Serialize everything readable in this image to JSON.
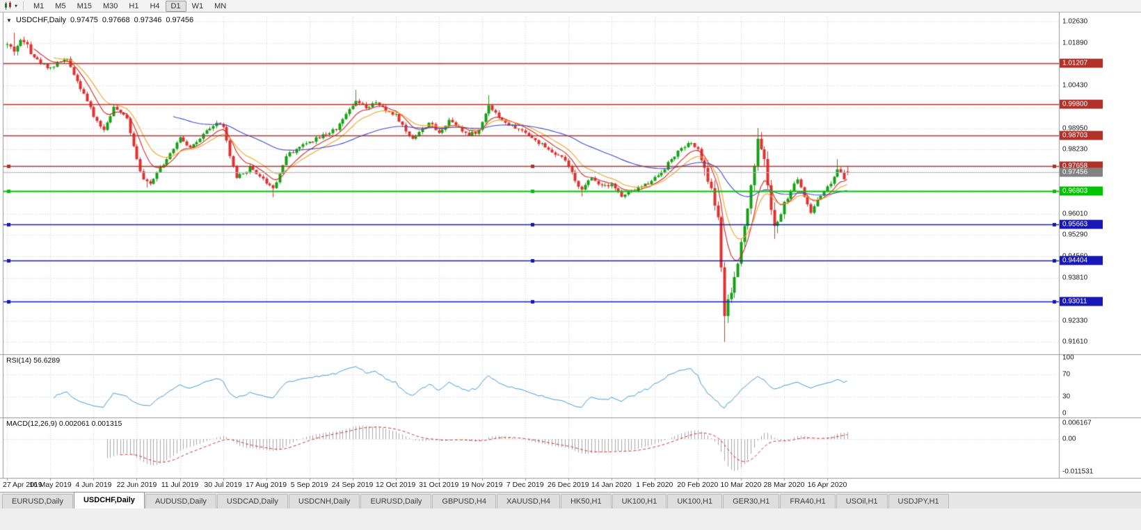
{
  "toolbar": {
    "chart_type_icon": "candlestick-chart-icon",
    "dropdown_glyph": "▾",
    "timeframes": [
      "M1",
      "M5",
      "M15",
      "M30",
      "H1",
      "H4",
      "D1",
      "W1",
      "MN"
    ],
    "active_timeframe": "D1"
  },
  "chart_header": {
    "collapse_icon": "▼",
    "symbol": "USDCHF,Daily",
    "open": "0.97475",
    "high": "0.97668",
    "low": "0.97346",
    "close": "0.97456"
  },
  "price_axis": {
    "labels": [
      {
        "label": "1.02630",
        "value": 1.0263
      },
      {
        "label": "1.01890",
        "value": 1.0189
      },
      {
        "label": "1.00430",
        "value": 1.0043
      },
      {
        "label": "0.98950",
        "value": 0.9895
      },
      {
        "label": "0.98230",
        "value": 0.9823
      },
      {
        "label": "0.96010",
        "value": 0.9601
      },
      {
        "label": "0.95290",
        "value": 0.9529
      },
      {
        "label": "0.94560",
        "value": 0.9456
      },
      {
        "label": "0.93810",
        "value": 0.9381
      },
      {
        "label": "0.92330",
        "value": 0.9233
      },
      {
        "label": "0.91610",
        "value": 0.9161
      }
    ],
    "grid_values": [
      1.0263,
      1.0189,
      1.0115,
      1.0043,
      0.9968,
      0.9895,
      0.9823,
      0.9749,
      0.9675,
      0.9601,
      0.9529,
      0.9456,
      0.9381,
      0.9309,
      0.9233,
      0.9161
    ],
    "current_price": {
      "label": "0.97456",
      "value": 0.97456,
      "color": "#828282"
    }
  },
  "hlines": [
    {
      "label": "1.01207",
      "value": 1.01207,
      "color": "#b2322a",
      "width": 1.5,
      "handles": false
    },
    {
      "label": "0.99800",
      "value": 0.998,
      "color": "#b2322a",
      "width": 1.5,
      "handles": false
    },
    {
      "label": "0.98703",
      "value": 0.98703,
      "color": "#b2322a",
      "width": 1.5,
      "handles": false
    },
    {
      "label": "0.97658",
      "value": 0.97658,
      "color": "#b2322a",
      "width": 1.5,
      "handles": true
    },
    {
      "label": "0.96803",
      "value": 0.96803,
      "color": "#00c400",
      "width": 2,
      "handles": true
    },
    {
      "label": "0.95663",
      "value": 0.95663,
      "color": "#1818b8",
      "width": 1.5,
      "handles": true
    },
    {
      "label": "0.94404",
      "value": 0.94404,
      "color": "#1818b8",
      "width": 1.5,
      "handles": true
    },
    {
      "label": "0.93011",
      "value": 0.93011,
      "color": "#1818b8",
      "width": 1.5,
      "handles": true
    }
  ],
  "date_axis": [
    "27 Apr 2019",
    "16 May 2019",
    "4 Jun 2019",
    "22 Jun 2019",
    "11 Jul 2019",
    "30 Jul 2019",
    "17 Aug 2019",
    "5 Sep 2019",
    "24 Sep 2019",
    "12 Oct 2019",
    "31 Oct 2019",
    "19 Nov 2019",
    "7 Dec 2019",
    "26 Dec 2019",
    "14 Jan 2020",
    "1 Feb 2020",
    "20 Feb 2020",
    "10 Mar 2020",
    "28 Mar 2020",
    "16 Apr 2020"
  ],
  "rsi_panel": {
    "title": "RSI(14) 56.6289",
    "indicator": "RSI",
    "period": 14,
    "last_value": "56.6289",
    "levels": [
      {
        "label": "100",
        "value": 100
      },
      {
        "label": "70",
        "value": 70
      },
      {
        "label": "30",
        "value": 30
      },
      {
        "label": "0",
        "value": 0
      }
    ],
    "line_color": "#3f9bd8"
  },
  "macd_panel": {
    "title": "MACD(12,26,9) 0.002061 0.001315",
    "indicator": "MACD",
    "params": "12,26,9",
    "macd_value": "0.002061",
    "signal_value": "0.001315",
    "max_label": "0.006167",
    "zero_label": "0.00",
    "min_label": "-0.011531",
    "histogram_color": "#a6a6a6",
    "signal_color": "#d23030"
  },
  "tabs": {
    "items": [
      "EURUSD,Daily",
      "USDCHF,Daily",
      "AUDUSD,Daily",
      "USDCAD,Daily",
      "USDCNH,Daily",
      "EURUSD,Daily",
      "GBPUSD,H4",
      "XAUUSD,H4",
      "HK50,H1",
      "UK100,H1",
      "UK100,H1",
      "GER30,H1",
      "FRA40,H1",
      "USOil,H1",
      "USDJPY,H1"
    ],
    "active_index": 1
  },
  "chart_data": {
    "type": "candlestick",
    "symbol": "USDCHF",
    "timeframe": "Daily",
    "bars": 254,
    "label_every_bars": 13,
    "ylim": [
      0.9128,
      1.028
    ],
    "up_color": "#16a016",
    "down_color": "#e03131",
    "moving_averages": [
      {
        "period": 8,
        "color": "#d42424"
      },
      {
        "period": 14,
        "color": "#f2a224"
      },
      {
        "period": 50,
        "color": "#3a4cc8"
      }
    ],
    "final_ohlc": [
      0.97475,
      0.97668,
      0.97346,
      0.97456
    ],
    "price_anchors": [
      [
        0,
        1.0185
      ],
      [
        2,
        1.016
      ],
      [
        4,
        1.02
      ],
      [
        6,
        1.0185
      ],
      [
        8,
        1.014
      ],
      [
        10,
        1.0118
      ],
      [
        13,
        1.0105
      ],
      [
        16,
        1.0125
      ],
      [
        18,
        1.0135
      ],
      [
        20,
        1.008
      ],
      [
        23,
        1.0015
      ],
      [
        26,
        0.9935
      ],
      [
        29,
        0.989
      ],
      [
        32,
        0.997
      ],
      [
        34,
        0.995
      ],
      [
        36,
        0.993
      ],
      [
        39,
        0.979
      ],
      [
        41,
        0.972
      ],
      [
        43,
        0.9705
      ],
      [
        45,
        0.9745
      ],
      [
        48,
        0.979
      ],
      [
        50,
        0.9825
      ],
      [
        52,
        0.9865
      ],
      [
        55,
        0.983
      ],
      [
        58,
        0.986
      ],
      [
        61,
        0.9895
      ],
      [
        63,
        0.9915
      ],
      [
        65,
        0.99
      ],
      [
        67,
        0.98
      ],
      [
        69,
        0.9725
      ],
      [
        71,
        0.974
      ],
      [
        73,
        0.9765
      ],
      [
        76,
        0.973
      ],
      [
        79,
        0.97
      ],
      [
        80,
        0.969
      ],
      [
        82,
        0.974
      ],
      [
        84,
        0.98
      ],
      [
        87,
        0.9825
      ],
      [
        91,
        0.985
      ],
      [
        95,
        0.9875
      ],
      [
        99,
        0.989
      ],
      [
        102,
        0.9945
      ],
      [
        105,
        0.999
      ],
      [
        108,
        0.9965
      ],
      [
        111,
        0.9985
      ],
      [
        114,
        0.9955
      ],
      [
        117,
        0.9945
      ],
      [
        120,
        0.9885
      ],
      [
        122,
        0.986
      ],
      [
        125,
        0.9895
      ],
      [
        127,
        0.9915
      ],
      [
        130,
        0.988
      ],
      [
        133,
        0.9925
      ],
      [
        136,
        0.99
      ],
      [
        139,
        0.987
      ],
      [
        142,
        0.989
      ],
      [
        145,
        0.9975
      ],
      [
        147,
        0.995
      ],
      [
        150,
        0.9915
      ],
      [
        153,
        0.9895
      ],
      [
        156,
        0.988
      ],
      [
        159,
        0.9855
      ],
      [
        162,
        0.983
      ],
      [
        165,
        0.9805
      ],
      [
        168,
        0.9785
      ],
      [
        171,
        0.9715
      ],
      [
        173,
        0.9685
      ],
      [
        176,
        0.9725
      ],
      [
        179,
        0.97
      ],
      [
        182,
        0.9705
      ],
      [
        185,
        0.966
      ],
      [
        188,
        0.968
      ],
      [
        191,
        0.9695
      ],
      [
        194,
        0.9715
      ],
      [
        197,
        0.9745
      ],
      [
        200,
        0.979
      ],
      [
        203,
        0.9828
      ],
      [
        206,
        0.9845
      ],
      [
        208,
        0.9825
      ],
      [
        210,
        0.976
      ],
      [
        212,
        0.969
      ],
      [
        214,
        0.959
      ],
      [
        216,
        0.925
      ],
      [
        218,
        0.933
      ],
      [
        220,
        0.943
      ],
      [
        222,
        0.956
      ],
      [
        224,
        0.97
      ],
      [
        226,
        0.986
      ],
      [
        228,
        0.979
      ],
      [
        229,
        0.97
      ],
      [
        231,
        0.956
      ],
      [
        233,
        0.96
      ],
      [
        236,
        0.968
      ],
      [
        238,
        0.972
      ],
      [
        240,
        0.966
      ],
      [
        242,
        0.9605
      ],
      [
        244,
        0.965
      ],
      [
        246,
        0.968
      ],
      [
        248,
        0.9705
      ],
      [
        250,
        0.9755
      ],
      [
        251,
        0.9745
      ],
      [
        252,
        0.972
      ],
      [
        253,
        0.97456
      ]
    ],
    "extremes": [
      {
        "i": 2,
        "high": 1.0225
      },
      {
        "i": 42,
        "low": 0.9692
      },
      {
        "i": 80,
        "low": 0.9659
      },
      {
        "i": 105,
        "high": 1.0028
      },
      {
        "i": 145,
        "high": 1.001
      },
      {
        "i": 173,
        "low": 0.9662
      },
      {
        "i": 216,
        "low": 0.9161
      },
      {
        "i": 226,
        "high": 0.9897
      },
      {
        "i": 231,
        "low": 0.9515
      },
      {
        "i": 250,
        "high": 0.979
      }
    ]
  }
}
